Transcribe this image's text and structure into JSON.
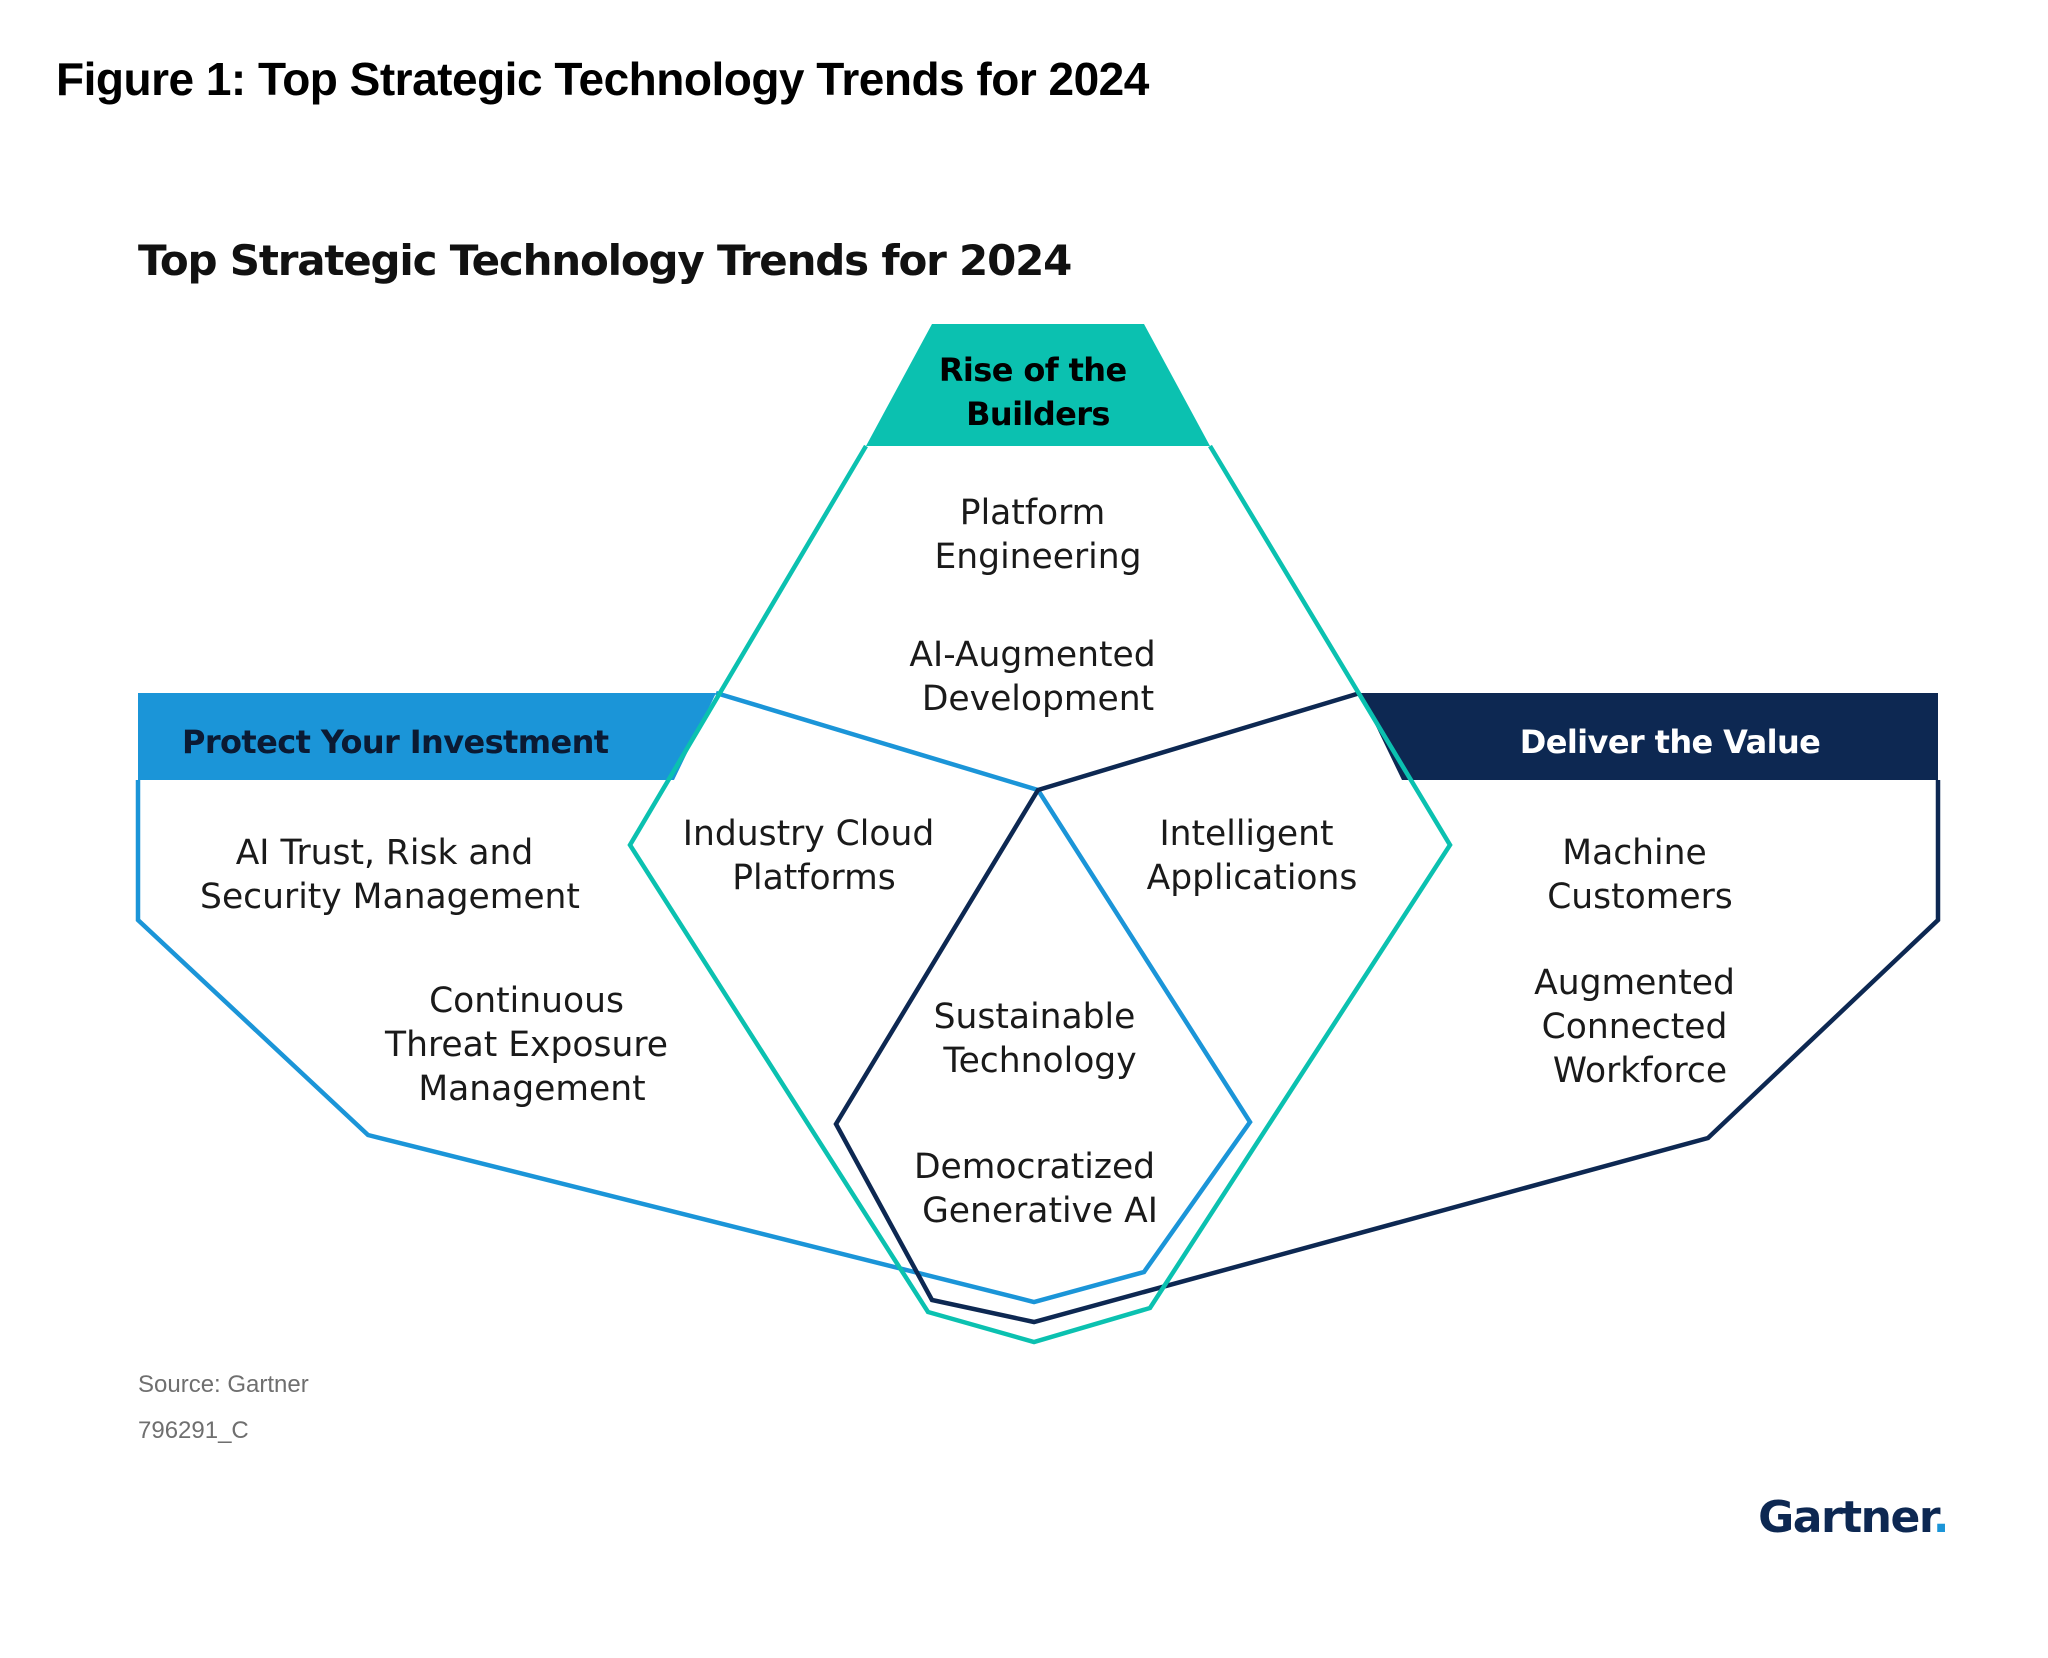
{
  "figure_title": "Figure 1: Top Strategic Technology Trends for 2024",
  "diagram_title": "Top Strategic Technology Trends for 2024",
  "colors": {
    "teal": "#0bc1b0",
    "light_blue": "#1b95d8",
    "navy": "#0d2852",
    "text": "#1a1a1a",
    "source_text": "#6f6f6f"
  },
  "themes": {
    "rise": {
      "title_lines": [
        "Rise of the",
        "Builders"
      ],
      "trends": [
        {
          "lines": [
            "Platform",
            "Engineering"
          ]
        },
        {
          "lines": [
            "AI-Augmented",
            "Development"
          ]
        }
      ]
    },
    "protect": {
      "title": "Protect Your Investment",
      "trends": [
        {
          "lines": [
            "AI Trust, Risk and",
            "Security Management"
          ]
        },
        {
          "lines": [
            "Continuous",
            "Threat Exposure",
            "Management"
          ]
        }
      ]
    },
    "deliver": {
      "title": "Deliver the Value",
      "trends": [
        {
          "lines": [
            "Machine",
            "Customers"
          ]
        },
        {
          "lines": [
            "Augmented",
            "Connected",
            "Workforce"
          ]
        }
      ]
    }
  },
  "overlaps": {
    "rise_protect": {
      "lines": [
        "Industry Cloud",
        "Platforms"
      ]
    },
    "rise_deliver": {
      "lines": [
        "Intelligent",
        "Applications"
      ]
    },
    "center": [
      {
        "lines": [
          "Sustainable",
          "Technology"
        ]
      },
      {
        "lines": [
          "Democratized",
          "Generative AI"
        ]
      }
    ]
  },
  "footer": {
    "source": "Source: Gartner",
    "id": "796291_C",
    "logo": "Gartner",
    "logo_dot": "."
  }
}
